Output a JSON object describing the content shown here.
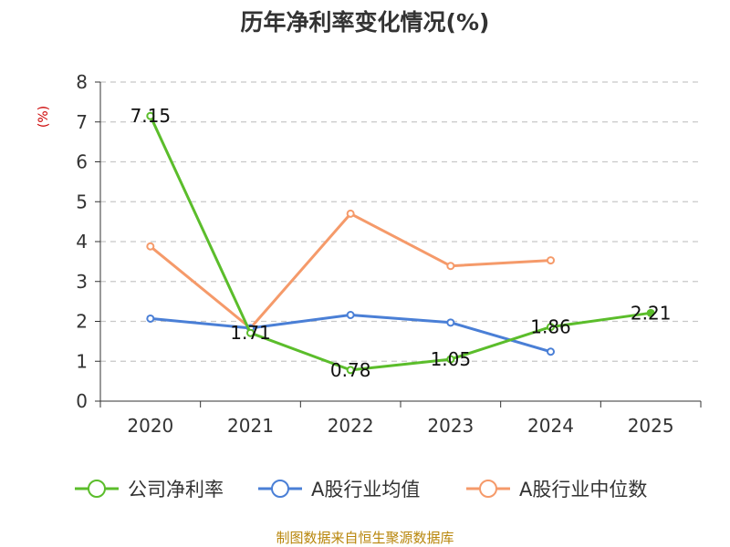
{
  "chart_data": {
    "type": "line",
    "title": "历年净利率变化情况(%)",
    "ylabel": "(%)",
    "categories": [
      "2020",
      "2021",
      "2022",
      "2023",
      "2024",
      "2025"
    ],
    "ylim": [
      0,
      8
    ],
    "yticks": [
      "0",
      "1",
      "2",
      "3",
      "4",
      "5",
      "6",
      "7",
      "8"
    ],
    "grid": true,
    "legend_position": "bottom",
    "series": [
      {
        "name": "公司净利率",
        "color": "#5bbd2b",
        "values": [
          7.15,
          1.71,
          0.78,
          1.05,
          1.86,
          2.21
        ],
        "labels": [
          "7.15",
          "1.71",
          "0.78",
          "1.05",
          "1.86",
          "2.21"
        ],
        "last_point_filled": true
      },
      {
        "name": "A股行业均值",
        "color": "#4a7fd6",
        "values": [
          2.07,
          1.83,
          2.16,
          1.97,
          1.24,
          null
        ]
      },
      {
        "name": "A股行业中位数",
        "color": "#f59a6a",
        "values": [
          3.88,
          1.83,
          4.7,
          3.39,
          3.53,
          null
        ]
      }
    ],
    "source": "制图数据来自恒生聚源数据库"
  }
}
